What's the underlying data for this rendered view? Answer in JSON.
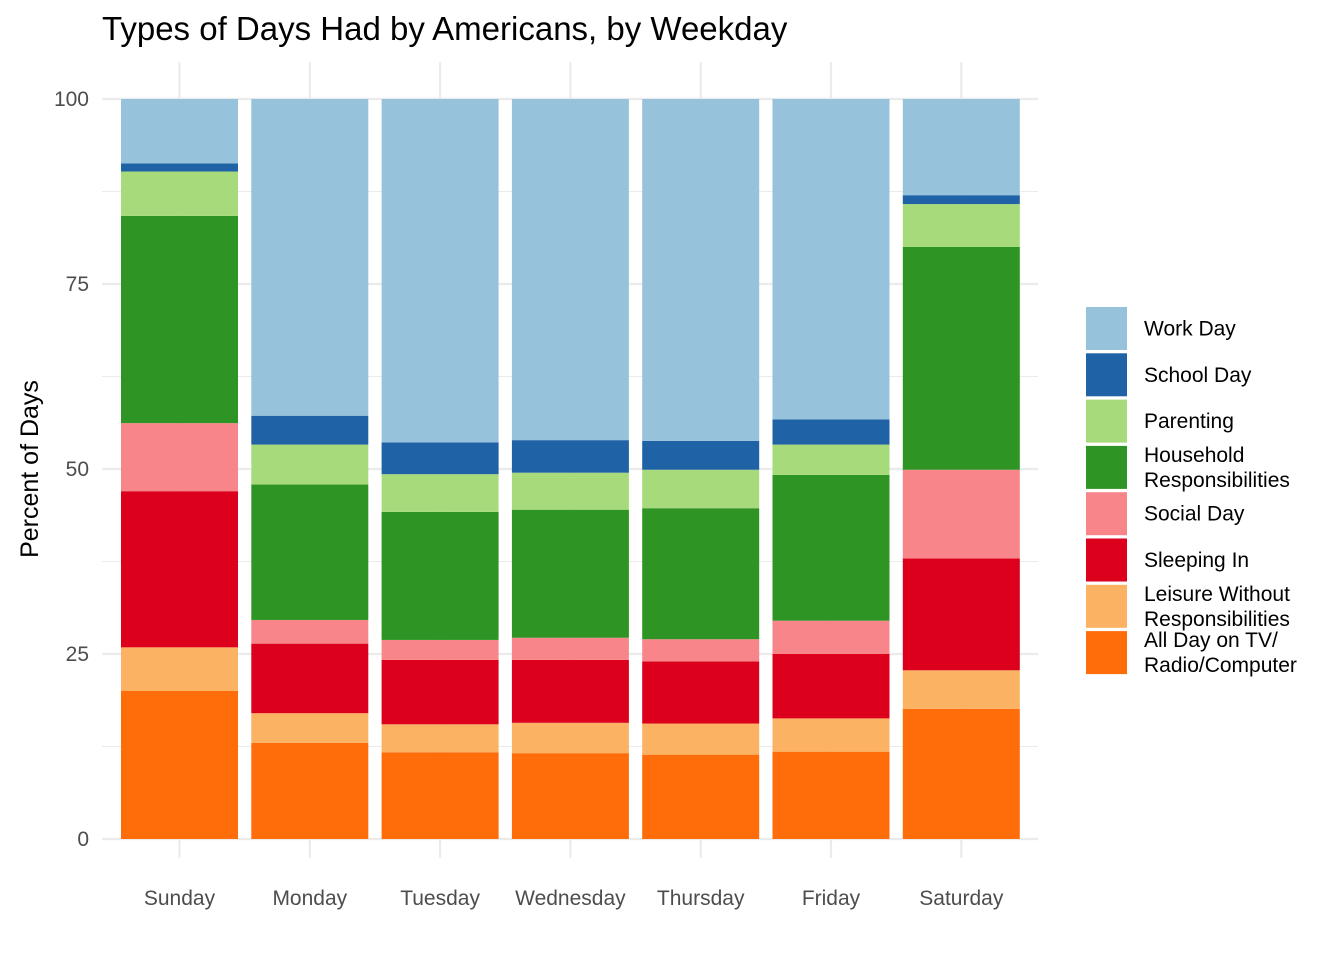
{
  "chart_data": {
    "type": "bar",
    "stacked": true,
    "title": "Types of Days Had by Americans, by Weekday",
    "xlabel": "",
    "ylabel": "Percent of Days",
    "ylim": [
      0,
      100
    ],
    "yticks": [
      0,
      25,
      50,
      75,
      100
    ],
    "grid": true,
    "legend_position": "right",
    "categories": [
      "Sunday",
      "Monday",
      "Tuesday",
      "Wednesday",
      "Thursday",
      "Friday",
      "Saturday"
    ],
    "series": [
      {
        "name": "All Day on TV/\nRadio/Computer",
        "color": "#ff6c0a",
        "values": [
          20.0,
          13.0,
          11.7,
          11.6,
          11.4,
          11.8,
          17.6
        ]
      },
      {
        "name": "Leisure Without\nResponsibilities",
        "color": "#fbb262",
        "values": [
          5.9,
          4.0,
          3.8,
          4.1,
          4.2,
          4.5,
          5.2
        ]
      },
      {
        "name": "Sleeping In",
        "color": "#dc001c",
        "values": [
          21.1,
          9.4,
          8.7,
          8.5,
          8.4,
          8.7,
          15.1
        ]
      },
      {
        "name": "Social Day",
        "color": "#f7858a",
        "values": [
          9.2,
          3.2,
          2.7,
          3.0,
          3.0,
          4.5,
          12.0
        ]
      },
      {
        "name": "Household\nResponsibilities",
        "color": "#2e9424",
        "values": [
          28.0,
          18.3,
          17.3,
          17.3,
          17.7,
          19.7,
          30.1
        ]
      },
      {
        "name": "Parenting",
        "color": "#a7da7b",
        "values": [
          6.0,
          5.4,
          5.1,
          5.0,
          5.2,
          4.1,
          5.8
        ]
      },
      {
        "name": "School Day",
        "color": "#1f62a6",
        "values": [
          1.1,
          3.9,
          4.3,
          4.4,
          3.9,
          3.4,
          1.2
        ]
      },
      {
        "name": "Work Day",
        "color": "#97c2db",
        "values": [
          8.7,
          42.8,
          46.4,
          46.1,
          46.2,
          43.3,
          13.0
        ]
      }
    ],
    "legend_order": [
      "Work Day",
      "School Day",
      "Parenting",
      "Household\nResponsibilities",
      "Social Day",
      "Sleeping In",
      "Leisure Without\nResponsibilities",
      "All Day on TV/\nRadio/Computer"
    ]
  }
}
